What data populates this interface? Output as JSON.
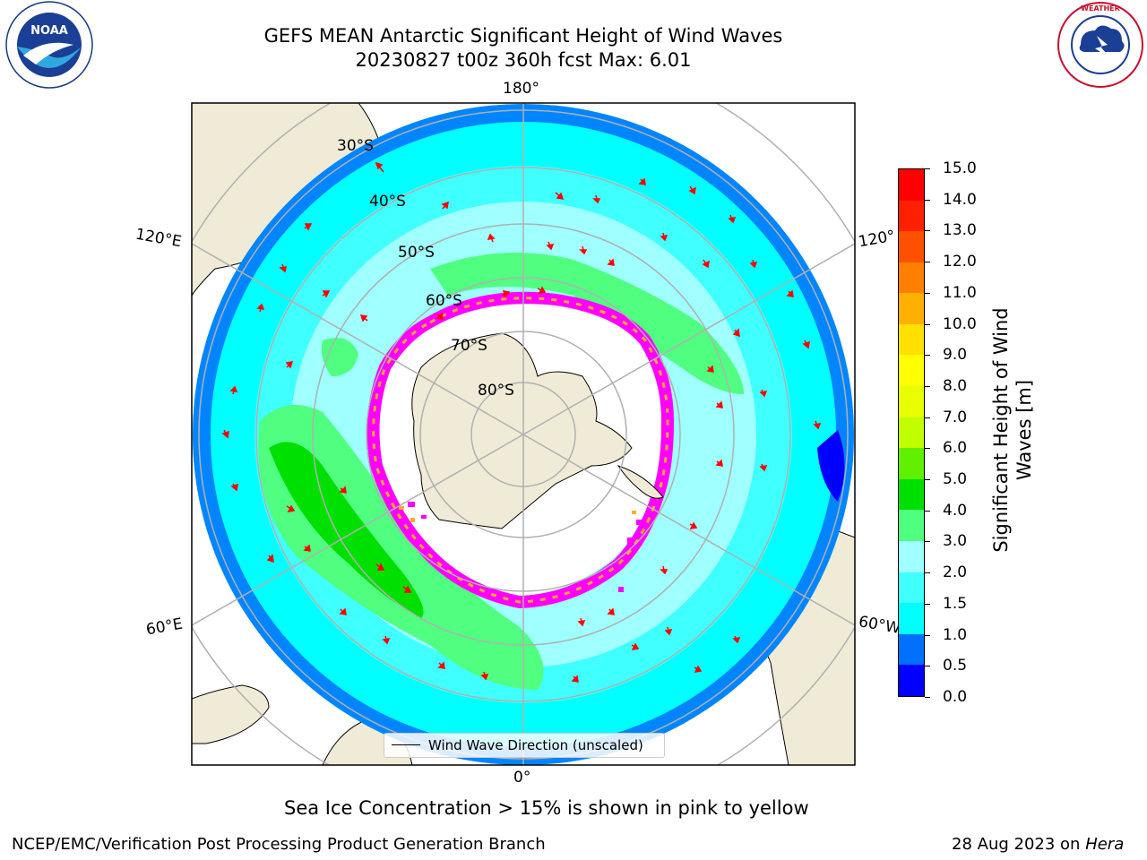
{
  "title": {
    "line1": "GEFS MEAN Antarctic Significant Height of Wind Waves",
    "line2": "20230827 t00z 360h fcst   Max: 6.01"
  },
  "logos": {
    "left": {
      "name": "NOAA",
      "ring_text": "NATIONAL OCEANIC AND ATMOSPHERIC ADMINISTRATION · U.S. DEPARTMENT OF COMMERCE"
    },
    "right": {
      "name": "NATIONAL WEATHER SERVICE"
    }
  },
  "map": {
    "projection": "south polar stereographic",
    "longitude_labels": {
      "top": "180°",
      "bottom": "0°",
      "upper_left": "120°E",
      "lower_left": "60°E",
      "upper_right": "120°",
      "lower_right": "60°W"
    },
    "latitude_labels": [
      "30°S",
      "40°S",
      "50°S",
      "60°S",
      "70°S",
      "80°S"
    ],
    "land_color": "#efebd6",
    "ocean_colors": {
      "low": "#0070ff",
      "mid": "#00ffff",
      "light": "#a0ffff",
      "moderate": "#50ff80",
      "high": "#00e000"
    },
    "sea_ice_colors": [
      "#ff00ff",
      "#ffaa33",
      "#ffff66"
    ],
    "arrow_color": "#ff0000",
    "legend": "Wind Wave Direction (unscaled)"
  },
  "colorbar": {
    "label": "Significant Height of Wind Waves [m]",
    "ticks": [
      "0.0",
      "0.5",
      "1.0",
      "1.5",
      "2.0",
      "3.0",
      "4.0",
      "5.0",
      "6.0",
      "7.0",
      "8.0",
      "9.0",
      "10.0",
      "11.0",
      "12.0",
      "13.0",
      "14.0",
      "15.0"
    ],
    "colors": [
      "#0000ff",
      "#0070ff",
      "#00ffff",
      "#40ffff",
      "#a0ffff",
      "#50ff80",
      "#00e000",
      "#60f000",
      "#c0ff00",
      "#e8ff00",
      "#ffff00",
      "#ffe000",
      "#ffb000",
      "#ff8000",
      "#ff5000",
      "#ff2000",
      "#ff0000"
    ]
  },
  "caption": "Sea Ice Concentration > 15% is shown in pink to yellow",
  "footer": {
    "left": "NCEP/EMC/Verification Post Processing Product Generation Branch",
    "right_date": "28 Aug 2023 on",
    "right_machine": "Hera"
  }
}
